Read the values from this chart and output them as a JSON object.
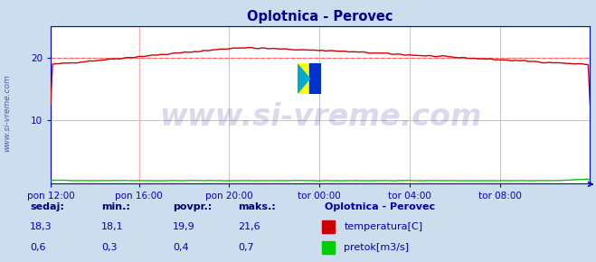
{
  "title": "Oplotnica - Perovec",
  "title_color": "#000099",
  "background_color": "#ccdded",
  "plot_bg_color": "#ffffff",
  "grid_color": "#ffaaaa",
  "xlabel_ticks": [
    "pon 12:00",
    "pon 16:00",
    "pon 20:00",
    "tor 00:00",
    "tor 04:00",
    "tor 08:00"
  ],
  "n_points": 288,
  "ylim_min": 0,
  "ylim_max": 25,
  "yticks": [
    10,
    20
  ],
  "dashed_line_value": 20.0,
  "temp_color": "#cc0000",
  "pretok_color": "#00cc00",
  "dashed_color": "#ff6666",
  "axis_color": "#0000cc",
  "tick_color": "#0000cc",
  "watermark_text": "www.si-vreme.com",
  "watermark_color": "#3333aa",
  "watermark_alpha": 0.18,
  "watermark_fontsize": 24,
  "sidebar_text": "www.si-vreme.com",
  "sidebar_color": "#5555bb",
  "legend_title": "Oplotnica - Perovec",
  "legend_title_color": "#0000aa",
  "legend_items": [
    "temperatura[C]",
    "pretok[m3/s]"
  ],
  "legend_colors": [
    "#cc0000",
    "#00cc00"
  ],
  "stats_labels": [
    "sedaj:",
    "min.:",
    "povpr.:",
    "maks.:"
  ],
  "stats_temp": [
    18.3,
    18.1,
    19.9,
    21.6
  ],
  "stats_pretok": [
    0.6,
    0.3,
    0.4,
    0.7
  ],
  "stats_color": "#0000bb",
  "stats_label_color": "#000077"
}
